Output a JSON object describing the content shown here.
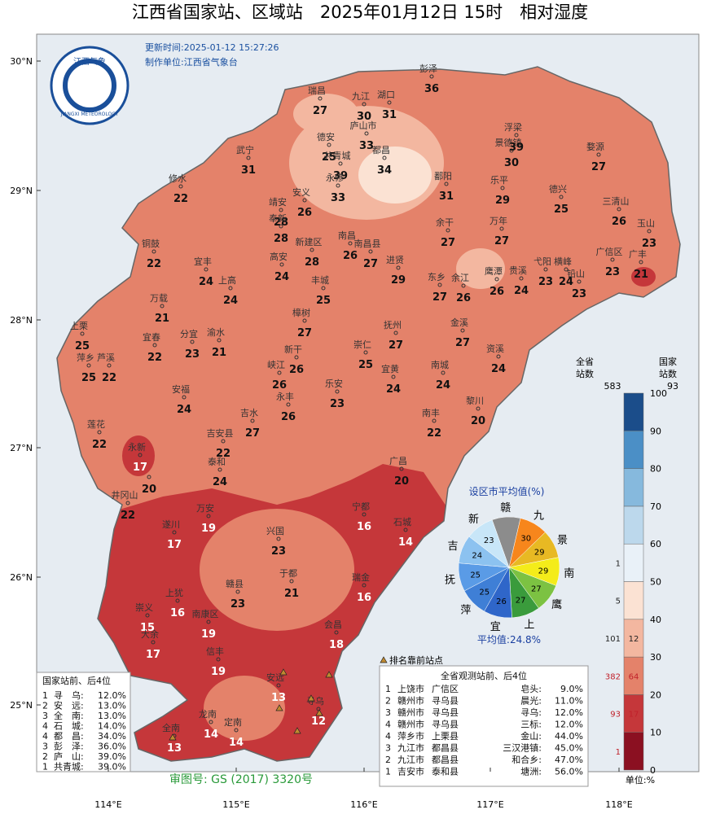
{
  "header": {
    "title": "江西省国家站、区域站　2025年01月12日 15时　相对湿度",
    "update": "更新时间:2025-01-12 15:27:26",
    "producer": "制作单位:江西省气象台",
    "logo_cn": "江西气象",
    "logo_en": "JIANGXI METEOROLOGY"
  },
  "axes": {
    "lat": [
      "30°N",
      "29°N",
      "28°N",
      "27°N",
      "26°N",
      "25°N"
    ],
    "lon": [
      "114°E",
      "115°E",
      "116°E",
      "117°E",
      "118°E"
    ]
  },
  "stations": [
    {
      "name": "瑞昌",
      "value": 27
    },
    {
      "name": "九江",
      "value": 30
    },
    {
      "name": "湖口",
      "value": 31
    },
    {
      "name": "彭泽",
      "value": 36
    },
    {
      "name": "德安",
      "value": 25
    },
    {
      "name": "庐山市",
      "value": 33
    },
    {
      "name": "共青城",
      "value": 39
    },
    {
      "name": "都昌",
      "value": 34
    },
    {
      "name": "武宁",
      "value": 31
    },
    {
      "name": "修水",
      "value": 22
    },
    {
      "name": "永修",
      "value": 33
    },
    {
      "name": "鄱阳",
      "value": 31
    },
    {
      "name": "景德镇",
      "value": 30
    },
    {
      "name": "浮梁",
      "value": 39
    },
    {
      "name": "婺源",
      "value": 27
    },
    {
      "name": "乐平",
      "value": 29
    },
    {
      "name": "德兴",
      "value": 25
    },
    {
      "name": "三清山",
      "value": 26
    },
    {
      "name": "玉山",
      "value": 23
    },
    {
      "name": "靖安",
      "value": 28
    },
    {
      "name": "安义",
      "value": 26
    },
    {
      "name": "奉新",
      "value": 28
    },
    {
      "name": "南昌",
      "value": 26
    },
    {
      "name": "新建区",
      "value": 28
    },
    {
      "name": "南昌县",
      "value": 27
    },
    {
      "name": "进贤",
      "value": 29
    },
    {
      "name": "余干",
      "value": 27
    },
    {
      "name": "万年",
      "value": 27
    },
    {
      "name": "铜鼓",
      "value": 22
    },
    {
      "name": "宜丰",
      "value": 24
    },
    {
      "name": "高安",
      "value": 24
    },
    {
      "name": "上高",
      "value": 24
    },
    {
      "name": "丰城",
      "value": 25
    },
    {
      "name": "东乡",
      "value": 27
    },
    {
      "name": "余江",
      "value": 26
    },
    {
      "name": "鹰潭",
      "value": 26
    },
    {
      "name": "贵溪",
      "value": 24
    },
    {
      "name": "弋阳",
      "value": 23
    },
    {
      "name": "横峰",
      "value": 24
    },
    {
      "name": "铅山",
      "value": 23
    },
    {
      "name": "广信区",
      "value": 23
    },
    {
      "name": "广丰",
      "value": 21
    },
    {
      "name": "万载",
      "value": 21
    },
    {
      "name": "樟树",
      "value": 27
    },
    {
      "name": "抚州",
      "value": 27
    },
    {
      "name": "金溪",
      "value": 27
    },
    {
      "name": "资溪",
      "value": 24
    },
    {
      "name": "上栗",
      "value": 25
    },
    {
      "name": "萍乡",
      "value": 25
    },
    {
      "name": "芦溪",
      "value": 22
    },
    {
      "name": "宜春",
      "value": 22
    },
    {
      "name": "分宜",
      "value": 23
    },
    {
      "name": "渝水",
      "value": 21
    },
    {
      "name": "新干",
      "value": 26
    },
    {
      "name": "崇仁",
      "value": 25
    },
    {
      "name": "峡江",
      "value": 26
    },
    {
      "name": "乐安",
      "value": 23
    },
    {
      "name": "宜黄",
      "value": 24
    },
    {
      "name": "南城",
      "value": 24
    },
    {
      "name": "黎川",
      "value": 20
    },
    {
      "name": "安福",
      "value": 24
    },
    {
      "name": "吉水",
      "value": 27
    },
    {
      "name": "永丰",
      "value": 26
    },
    {
      "name": "南丰",
      "value": 22
    },
    {
      "name": "莲花",
      "value": 22
    },
    {
      "name": "吉安县",
      "value": 22
    },
    {
      "name": "泰和",
      "value": 24
    },
    {
      "name": "井冈山",
      "value": 22
    },
    {
      "name": "永新",
      "value": 17
    },
    {
      "name": null,
      "value": 20
    },
    {
      "name": "广昌",
      "value": 20
    },
    {
      "name": "万安",
      "value": 19
    },
    {
      "name": "遂川",
      "value": 17
    },
    {
      "name": "宁都",
      "value": 16
    },
    {
      "name": "石城",
      "value": 14
    },
    {
      "name": "兴国",
      "value": 23
    },
    {
      "name": "于都",
      "value": 21
    },
    {
      "name": "赣县",
      "value": 23
    },
    {
      "name": "瑞金",
      "value": 16
    },
    {
      "name": "上犹",
      "value": 16
    },
    {
      "name": "崇义",
      "value": 15
    },
    {
      "name": "南康区",
      "value": 19
    },
    {
      "name": "大余",
      "value": 17
    },
    {
      "name": "信丰",
      "value": 19
    },
    {
      "name": "会昌",
      "value": 18
    },
    {
      "name": "安远",
      "value": 13
    },
    {
      "name": "寻乌",
      "value": 12
    },
    {
      "name": "全南",
      "value": 13
    },
    {
      "name": "龙南",
      "value": 14
    },
    {
      "name": "定南",
      "value": 14
    }
  ],
  "pie": {
    "title": "设区市平均值(%)",
    "average": "平均值:24.8%",
    "sectors": [
      {
        "name": "赣",
        "value": null,
        "color": "#8c8c8c"
      },
      {
        "name": "九",
        "value": 30,
        "color": "#f7861c"
      },
      {
        "name": "景",
        "value": 29,
        "color": "#e8b923"
      },
      {
        "name": "南",
        "value": 29,
        "color": "#f4ec1a"
      },
      {
        "name": "鹰",
        "value": 27,
        "color": "#7cc242"
      },
      {
        "name": "上",
        "value": 27,
        "color": "#3a9b3c"
      },
      {
        "name": "宜",
        "value": 26,
        "color": "#2f66c9"
      },
      {
        "name": "萍",
        "value": 25,
        "color": "#3f7fd6"
      },
      {
        "name": "抚",
        "value": 25,
        "color": "#5a9be6"
      },
      {
        "name": "吉",
        "value": 24,
        "color": "#8cc2f0"
      },
      {
        "name": "新",
        "value": 23,
        "color": "#c8e6f8"
      }
    ]
  },
  "legend": {
    "province_label": "全省\n站数",
    "national_label": "国家\n站数",
    "province_total": 583,
    "national_total": 93,
    "unit": "单位:%",
    "ticks": [
      0,
      10,
      20,
      30,
      40,
      50,
      60,
      70,
      80,
      90,
      100
    ],
    "bins": [
      {
        "color": "#8b1021",
        "province": 1,
        "national": null
      },
      {
        "color": "#c5373a",
        "province": 93,
        "national": 17
      },
      {
        "color": "#e4826a",
        "province": 382,
        "national": 64
      },
      {
        "color": "#f3b7a0",
        "province": 101,
        "national": 12
      },
      {
        "color": "#fbe2d3",
        "province": 5,
        "national": null
      },
      {
        "color": "#e9f1f8",
        "province": 1,
        "national": null
      },
      {
        "color": "#bcd8ec",
        "province": null,
        "national": null
      },
      {
        "color": "#86b9dd",
        "province": null,
        "national": null
      },
      {
        "color": "#4b8fc6",
        "province": null,
        "national": null
      },
      {
        "color": "#1b4d8a",
        "province": null,
        "national": null
      }
    ]
  },
  "marker_note": "排名靠前站点",
  "national_rank": {
    "title": "国家站前、后4位",
    "rows": [
      [
        "1",
        "寻　乌:",
        "12.0%"
      ],
      [
        "2",
        "安　远:",
        "13.0%"
      ],
      [
        "3",
        "全　南:",
        "13.0%"
      ],
      [
        "4",
        "石　城:",
        "14.0%"
      ],
      [
        "4",
        "都　昌:",
        "34.0%"
      ],
      [
        "3",
        "彭　泽:",
        "36.0%"
      ],
      [
        "2",
        "庐　山:",
        "39.0%"
      ],
      [
        "1",
        "共青城:",
        "39.0%"
      ]
    ]
  },
  "all_rank": {
    "title": "全省观测站前、后4位",
    "rows": [
      [
        "1",
        "上饶市",
        "广信区",
        "皂头:",
        "9.0%"
      ],
      [
        "2",
        "赣州市",
        "寻乌县",
        "晨光:",
        "11.0%"
      ],
      [
        "3",
        "赣州市",
        "寻乌县",
        "寻乌:",
        "12.0%"
      ],
      [
        "4",
        "赣州市",
        "寻乌县",
        "三标:",
        "12.0%"
      ],
      [
        "4",
        "萍乡市",
        "上栗县",
        "金山:",
        "44.0%"
      ],
      [
        "3",
        "九江市",
        "都昌县",
        "三汉港镇:",
        "45.0%"
      ],
      [
        "2",
        "九江市",
        "都昌县",
        "和合乡:",
        "47.0%"
      ],
      [
        "1",
        "吉安市",
        "泰和县",
        "塘洲:",
        "56.0%"
      ]
    ]
  },
  "review_no": "审图号: GS (2017) 3320号"
}
